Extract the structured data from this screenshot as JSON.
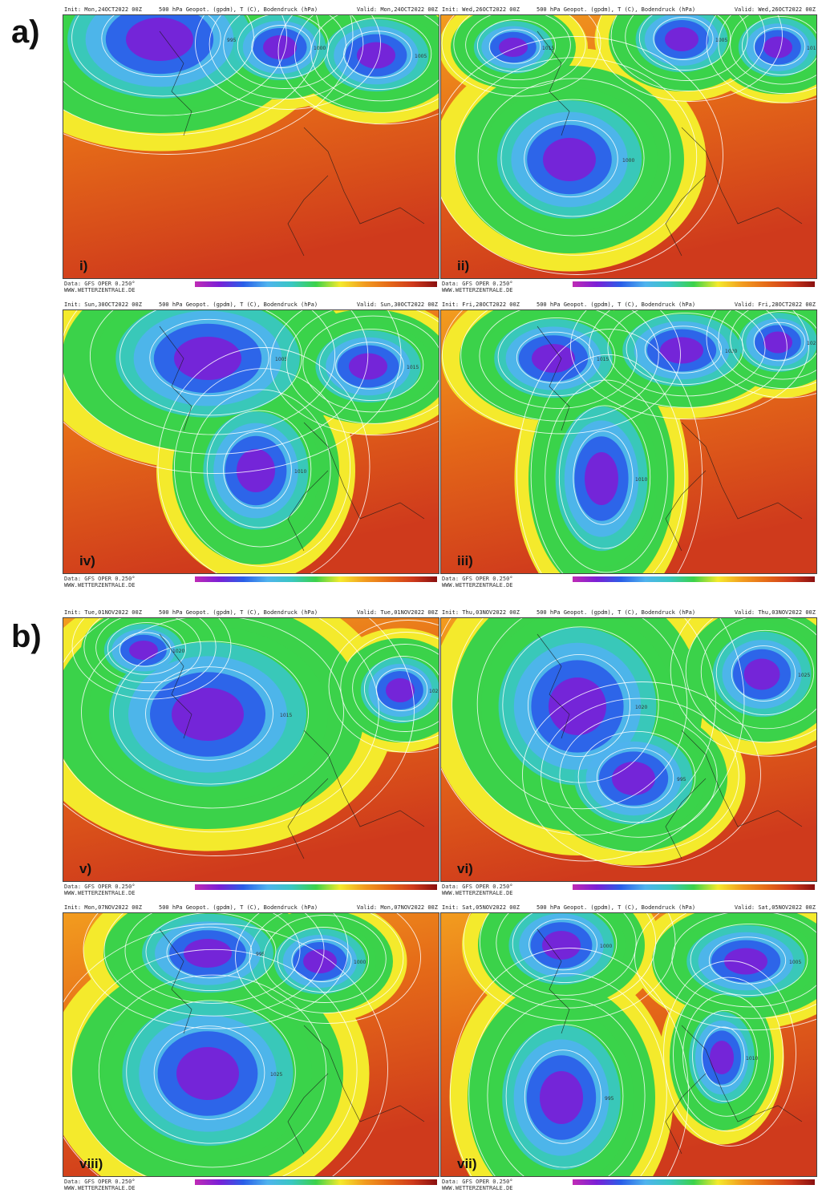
{
  "sections": [
    {
      "label": "a)"
    },
    {
      "label": "b)"
    }
  ],
  "panels": [
    {
      "id": "i",
      "label": "i)",
      "init": "Init: Mon,24OCT2022 00Z",
      "valid": "Valid: Mon,24OCT2022 00Z"
    },
    {
      "id": "ii",
      "label": "ii)",
      "init": "Init: Wed,26OCT2022 00Z",
      "valid": "Valid: Wed,26OCT2022 00Z"
    },
    {
      "id": "iv",
      "label": "iv)",
      "init": "Init: Sun,30OCT2022 00Z",
      "valid": "Valid: Sun,30OCT2022 00Z"
    },
    {
      "id": "iii",
      "label": "iii)",
      "init": "Init: Fri,28OCT2022 00Z",
      "valid": "Valid: Fri,28OCT2022 00Z"
    },
    {
      "id": "v",
      "label": "v)",
      "init": "Init: Tue,01NOV2022 00Z",
      "valid": "Valid: Tue,01NOV2022 00Z"
    },
    {
      "id": "vi",
      "label": "vi)",
      "init": "Init: Thu,03NOV2022 00Z",
      "valid": "Valid: Thu,03NOV2022 00Z"
    },
    {
      "id": "viii",
      "label": "viii)",
      "init": "Init: Mon,07NOV2022 00Z",
      "valid": "Valid: Mon,07NOV2022 00Z"
    },
    {
      "id": "vii",
      "label": "vii)",
      "init": "Init: Sat,05NOV2022 00Z",
      "valid": "Valid: Sat,05NOV2022 00Z"
    }
  ],
  "common": {
    "title": "500 hPa Geopot. (gpdm), T (C), Bodendruck (hPa)",
    "data_source": "Data: GFS OPER 0.250°",
    "website": "WWW.WETTERZENTRALE.DE"
  },
  "colors": {
    "deep_purple": "#7b1fd6",
    "blue": "#2a5ee8",
    "light_blue": "#4fb3ee",
    "cyan": "#39c7c2",
    "green": "#3bd24a",
    "yellow": "#f4ea2c",
    "orange": "#f29c1f",
    "dark_orange": "#e56a18",
    "red": "#cf3a1c",
    "isobar": "#ffffff"
  },
  "isobar_values": [
    "995",
    "1000",
    "1005",
    "1010",
    "1015",
    "1020",
    "1025"
  ]
}
